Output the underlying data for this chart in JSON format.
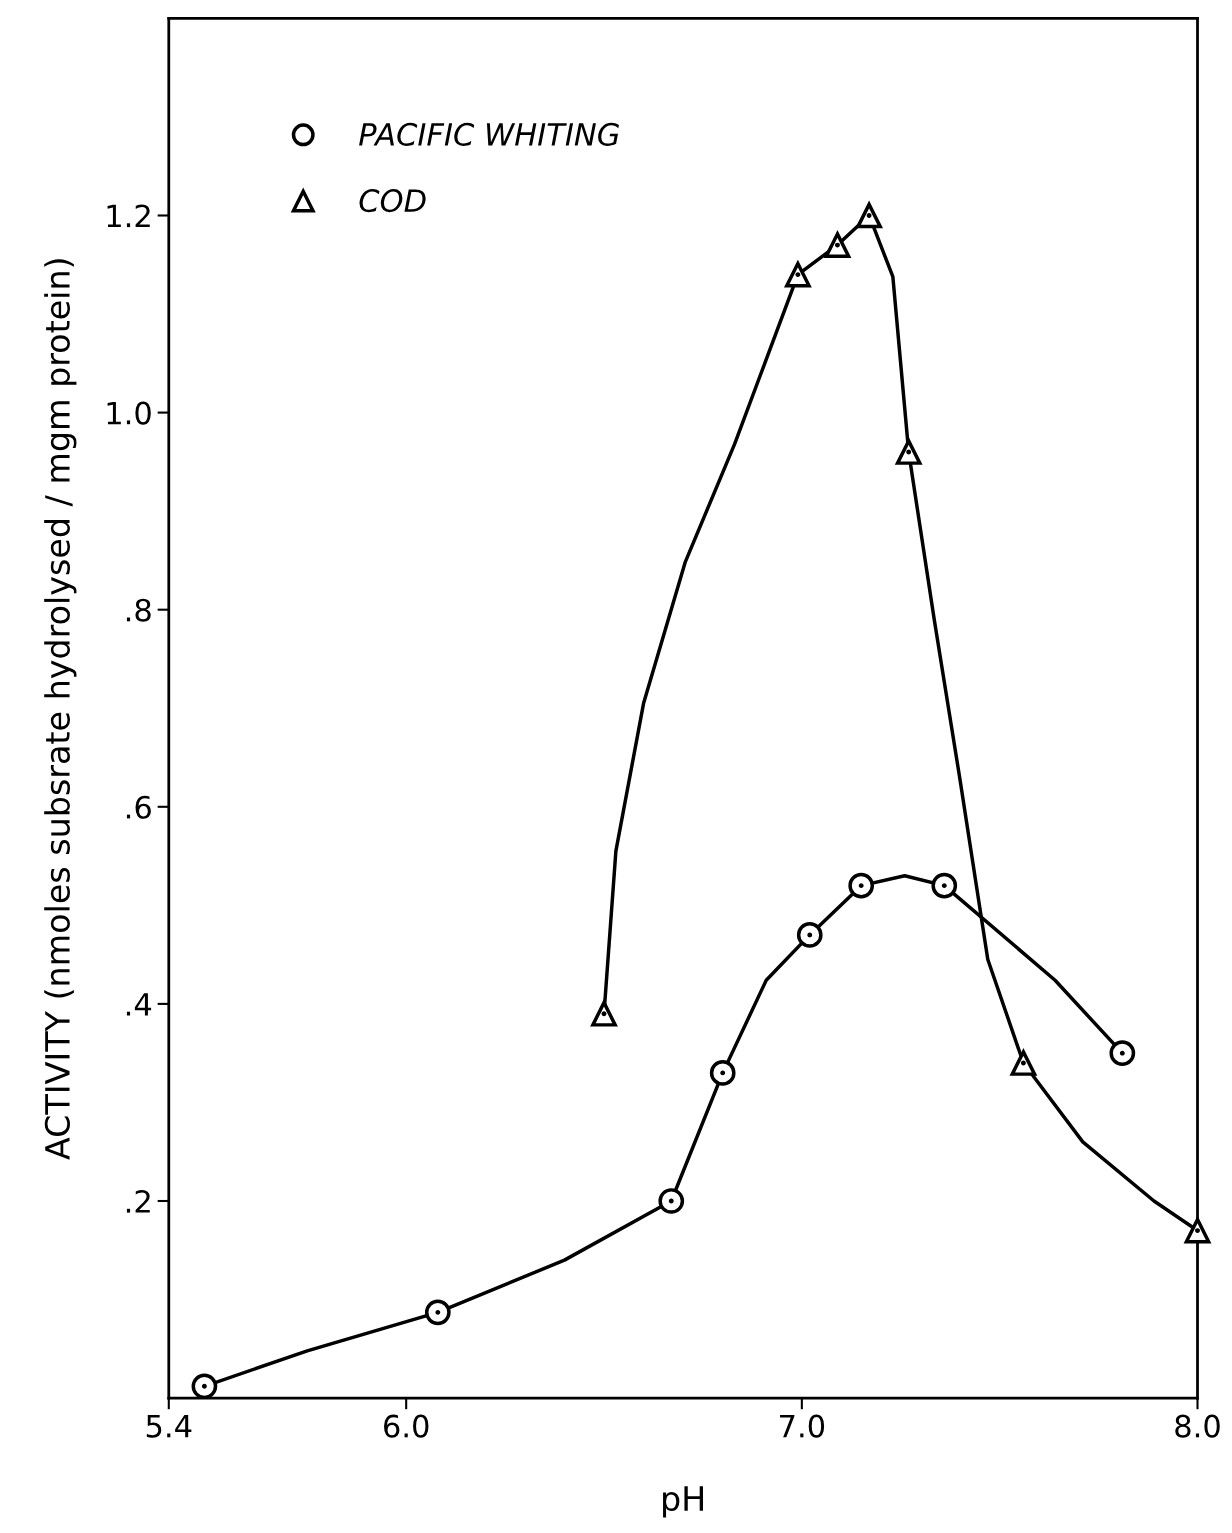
{
  "chart_data": {
    "type": "line",
    "xlabel": "pH",
    "ylabel": "ACTIVITY (nmoles subsrate hydrolysed / mgm protein)",
    "xlim": [
      5.4,
      8.0
    ],
    "xticks": [
      5.4,
      {
        "value": 6.0,
        "label": "6.0"
      },
      {
        "value": 7.0,
        "label": "7.0"
      },
      {
        "value": 8.0,
        "label": "8.0"
      }
    ],
    "ylim": [
      0,
      1.4
    ],
    "yticks": [
      {
        "value": 0.2,
        "label": ".2"
      },
      {
        "value": 0.4,
        "label": ".4"
      },
      {
        "value": 0.6,
        "label": ".6"
      },
      {
        "value": 0.8,
        "label": ".8"
      },
      {
        "value": 1.0,
        "label": "1.0"
      },
      {
        "value": 1.2,
        "label": "1.2"
      }
    ],
    "grid": false,
    "legend": "top left",
    "series": [
      {
        "color": "#000000",
        "x": [
          5.49,
          5.75,
          6.08,
          6.4,
          6.67,
          6.8,
          6.91,
          7.02,
          7.15,
          7.26,
          7.36,
          7.64,
          7.81
        ],
        "values": [
          0.012,
          0.048,
          0.087,
          0.14,
          0.2,
          0.33,
          0.424,
          0.47,
          0.52,
          0.53,
          0.52,
          0.424,
          0.35
        ]
      },
      {
        "color": "#000000",
        "x": [
          6.5,
          6.53,
          6.6,
          6.705,
          6.83,
          6.99,
          7.09,
          7.17,
          7.23,
          7.27,
          7.335,
          7.4,
          7.47,
          7.56,
          7.71,
          7.89,
          8.0
        ],
        "values": [
          0.39,
          0.555,
          0.705,
          0.848,
          0.968,
          1.14,
          1.17,
          1.2,
          1.138,
          0.96,
          0.789,
          0.627,
          0.445,
          0.34,
          0.26,
          0.2,
          0.17
        ]
      },
      {
        "type": "scatter",
        "name": "PACIFIC WHITING",
        "color": "#000000",
        "marker": "circle",
        "x": [
          5.49,
          6.08,
          6.67,
          6.8,
          7.02,
          7.15,
          7.36,
          7.81
        ],
        "values": [
          0.012,
          0.087,
          0.2,
          0.33,
          0.47,
          0.52,
          0.52,
          0.35
        ]
      },
      {
        "type": "scatter",
        "name": "COD",
        "color": "#000000",
        "marker": "triangle",
        "x": [
          6.5,
          6.99,
          7.09,
          7.17,
          7.27,
          7.56,
          8.0
        ],
        "values": [
          0.39,
          1.14,
          1.17,
          1.2,
          0.96,
          0.34,
          0.17
        ]
      }
    ]
  }
}
